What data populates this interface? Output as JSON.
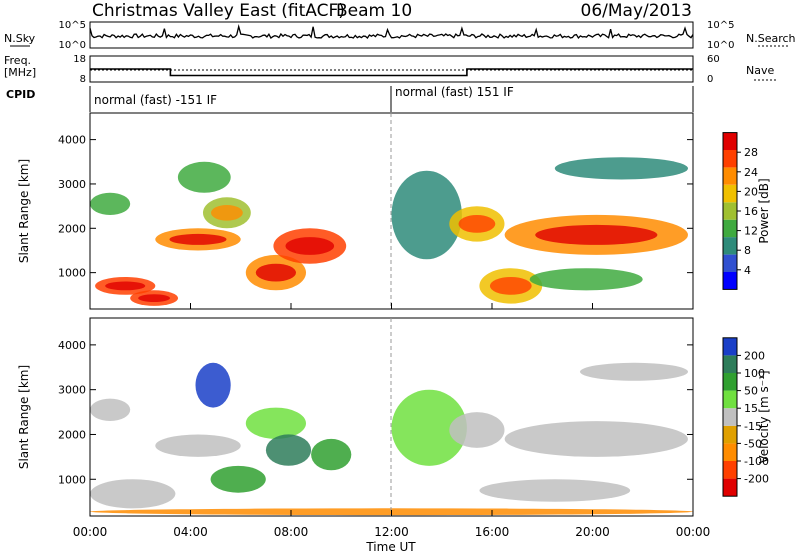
{
  "header": {
    "title": "Christmas Valley East (fitACF)",
    "beam": "Beam 10",
    "date": "06/May/2013"
  },
  "panels_top": {
    "nsky_label": "N.Sky",
    "nsky_ticks": [
      "10^5",
      "10^0"
    ],
    "nsearch_label": "N.Search",
    "nsearch_ticks": [
      "10^5",
      "10^0"
    ],
    "freq_label_1": "Freq.",
    "freq_label_2": "[MHz]",
    "freq_ticks": [
      "18",
      "8"
    ],
    "freq_values": [
      {
        "x": 0,
        "y": 13
      },
      {
        "x": 3.2,
        "y": 13
      },
      {
        "x": 3.2,
        "y": 10.5
      },
      {
        "x": 15,
        "y": 10.5
      },
      {
        "x": 15,
        "y": 13
      },
      {
        "x": 24,
        "y": 13
      }
    ],
    "nave_label": "Nave",
    "nave_ticks": [
      "60",
      "0"
    ],
    "cpid_label": "CPID",
    "cpid_segments": [
      {
        "start": 0,
        "end": 12,
        "text": "normal (fast) -151 IF"
      },
      {
        "start": 12,
        "end": 24,
        "text": "normal (fast) 151 IF"
      }
    ]
  },
  "chart_data": [
    {
      "type": "heatmap",
      "name": "Power",
      "ylabel": "Slant Range [km]",
      "ylim": [
        180,
        4600
      ],
      "y_ticks": [
        "4000",
        "3000",
        "2000",
        "1000"
      ],
      "xlim": [
        0,
        24
      ],
      "colorbar": {
        "label": "Power [dB]",
        "ticks": [
          "28",
          "24",
          "20",
          "16",
          "12",
          "8",
          "4"
        ],
        "colors": [
          "#0000ff",
          "#3050d0",
          "#2e8b7a",
          "#3faa3f",
          "#a0c030",
          "#f0c000",
          "#ff8c00",
          "#ff4000",
          "#e00000"
        ]
      },
      "regions": [
        {
          "t0": 0.0,
          "t1": 1.6,
          "r0": 2300,
          "r1": 2800,
          "level": 10
        },
        {
          "t0": 0.2,
          "t1": 2.6,
          "r0": 500,
          "r1": 900,
          "level": 24
        },
        {
          "t0": 1.6,
          "t1": 3.5,
          "r0": 250,
          "r1": 600,
          "level": 26
        },
        {
          "t0": 2.6,
          "t1": 6.0,
          "r0": 1500,
          "r1": 2000,
          "level": 20
        },
        {
          "t0": 3.5,
          "t1": 5.6,
          "r0": 2800,
          "r1": 3500,
          "level": 12
        },
        {
          "t0": 4.5,
          "t1": 6.4,
          "r0": 2000,
          "r1": 2700,
          "level": 14
        },
        {
          "t0": 6.2,
          "t1": 8.6,
          "r0": 600,
          "r1": 1400,
          "level": 22
        },
        {
          "t0": 7.3,
          "t1": 10.2,
          "r0": 1200,
          "r1": 2000,
          "level": 26
        },
        {
          "t0": 12.0,
          "t1": 14.8,
          "r0": 1300,
          "r1": 3300,
          "level": 9
        },
        {
          "t0": 14.3,
          "t1": 16.5,
          "r0": 1700,
          "r1": 2500,
          "level": 17
        },
        {
          "t0": 16.5,
          "t1": 23.8,
          "r0": 1400,
          "r1": 2300,
          "level": 20
        },
        {
          "t0": 15.5,
          "t1": 18.0,
          "r0": 300,
          "r1": 1100,
          "level": 18
        },
        {
          "t0": 17.5,
          "t1": 22.0,
          "r0": 600,
          "r1": 1100,
          "level": 12
        },
        {
          "t0": 18.5,
          "t1": 23.8,
          "r0": 3100,
          "r1": 3600,
          "level": 8
        }
      ]
    },
    {
      "type": "heatmap",
      "name": "Velocity",
      "ylabel": "Slant Range [km]",
      "ylim": [
        180,
        4600
      ],
      "y_ticks": [
        "4000",
        "3000",
        "2000",
        "1000"
      ],
      "xlim": [
        0,
        24
      ],
      "x_ticks": [
        "00:00",
        "04:00",
        "08:00",
        "12:00",
        "16:00",
        "20:00",
        "00:00"
      ],
      "xlabel": "Time UT",
      "colorbar": {
        "label": "Velocity [m s⁻¹]",
        "ticks": [
          "200",
          "100",
          "50",
          "15",
          "-15",
          "-50",
          "-100",
          "-200"
        ],
        "colors": [
          "#e00000",
          "#ff4000",
          "#ff8c00",
          "#e0a000",
          "#c0c0c0",
          "#70e040",
          "#30a030",
          "#2e7d5a",
          "#1a3fc8"
        ]
      },
      "regions": [
        {
          "t0": 0.0,
          "t1": 1.6,
          "r0": 2300,
          "r1": 2800,
          "level": 0
        },
        {
          "t0": 0.0,
          "t1": 3.4,
          "r0": 350,
          "r1": 1000,
          "level": 0
        },
        {
          "t0": 2.6,
          "t1": 6.0,
          "r0": 1500,
          "r1": 2000,
          "level": 0
        },
        {
          "t0": 4.2,
          "t1": 5.6,
          "r0": 2600,
          "r1": 3600,
          "level": 180
        },
        {
          "t0": 6.2,
          "t1": 8.6,
          "r0": 1900,
          "r1": 2600,
          "level": 20
        },
        {
          "t0": 4.8,
          "t1": 7.0,
          "r0": 700,
          "r1": 1300,
          "level": 40
        },
        {
          "t0": 7.0,
          "t1": 8.8,
          "r0": 1300,
          "r1": 2000,
          "level": 90
        },
        {
          "t0": 8.8,
          "t1": 10.4,
          "r0": 1200,
          "r1": 1900,
          "level": 40
        },
        {
          "t0": 12.0,
          "t1": 15.0,
          "r0": 1300,
          "r1": 3000,
          "level": 10
        },
        {
          "t0": 14.3,
          "t1": 16.5,
          "r0": 1700,
          "r1": 2500,
          "level": 0
        },
        {
          "t0": 16.5,
          "t1": 23.8,
          "r0": 1500,
          "r1": 2300,
          "level": 0
        },
        {
          "t0": 15.5,
          "t1": 21.5,
          "r0": 500,
          "r1": 1000,
          "level": 0
        },
        {
          "t0": 0.0,
          "t1": 24.0,
          "r0": 200,
          "r1": 350,
          "level": -60
        },
        {
          "t0": 19.5,
          "t1": 23.8,
          "r0": 3200,
          "r1": 3600,
          "level": 0
        }
      ]
    }
  ]
}
